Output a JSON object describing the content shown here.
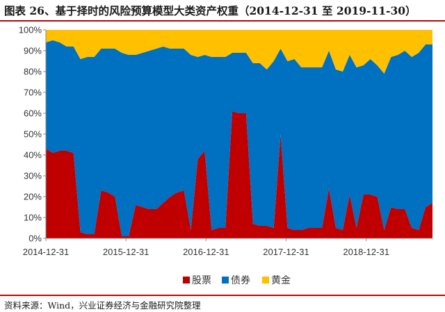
{
  "title": "图表 26、基于择时的风险预算模型大类资产权重（2014-12-31 至 2019-11-30）",
  "source": "资料来源：Wind，兴业证券经济与金融研究院整理",
  "chart_data": {
    "type": "area",
    "stacked": true,
    "x_tick_labels": [
      "2014-12-31",
      "2015-12-31",
      "2016-12-31",
      "2017-12-31",
      "2018-12-31"
    ],
    "y_tick_labels": [
      "0%",
      "10%",
      "20%",
      "30%",
      "40%",
      "50%",
      "60%",
      "70%",
      "80%",
      "90%",
      "100%"
    ],
    "ylim": [
      0,
      100
    ],
    "legend_position": "bottom",
    "grid": false,
    "series": [
      {
        "name": "股票",
        "color": "#c00000",
        "values": [
          43,
          41,
          42,
          42,
          41,
          3,
          2,
          2,
          23,
          22,
          20,
          1,
          1,
          16,
          15,
          14,
          14,
          17,
          20,
          22,
          23,
          4,
          38,
          42,
          4,
          5,
          5,
          61,
          60,
          60,
          7,
          6,
          6,
          5,
          50,
          5,
          4,
          4,
          5,
          5,
          5,
          24,
          5,
          4,
          21,
          5,
          21,
          21,
          20,
          4,
          15,
          14,
          14,
          5,
          4,
          15,
          17
        ]
      },
      {
        "name": "债券",
        "color": "#0070c0",
        "values": [
          51,
          54,
          52,
          50,
          51,
          83,
          85,
          85,
          68,
          69,
          71,
          88,
          87,
          72,
          74,
          76,
          77,
          75,
          71,
          69,
          68,
          84,
          49,
          46,
          83,
          82,
          82,
          28,
          29,
          29,
          77,
          78,
          75,
          80,
          41,
          80,
          82,
          78,
          77,
          77,
          77,
          66,
          76,
          76,
          67,
          77,
          62,
          65,
          63,
          75,
          72,
          74,
          76,
          82,
          85,
          78,
          76
        ]
      },
      {
        "name": "黄金",
        "color": "#ffc000",
        "values": [
          6,
          5,
          6,
          8,
          8,
          14,
          13,
          13,
          9,
          9,
          9,
          11,
          12,
          12,
          11,
          10,
          9,
          8,
          9,
          9,
          9,
          12,
          13,
          12,
          13,
          13,
          13,
          11,
          11,
          11,
          16,
          16,
          19,
          15,
          9,
          15,
          14,
          18,
          18,
          18,
          18,
          10,
          19,
          20,
          12,
          18,
          17,
          14,
          17,
          21,
          13,
          12,
          10,
          13,
          11,
          7,
          7
        ]
      }
    ]
  }
}
